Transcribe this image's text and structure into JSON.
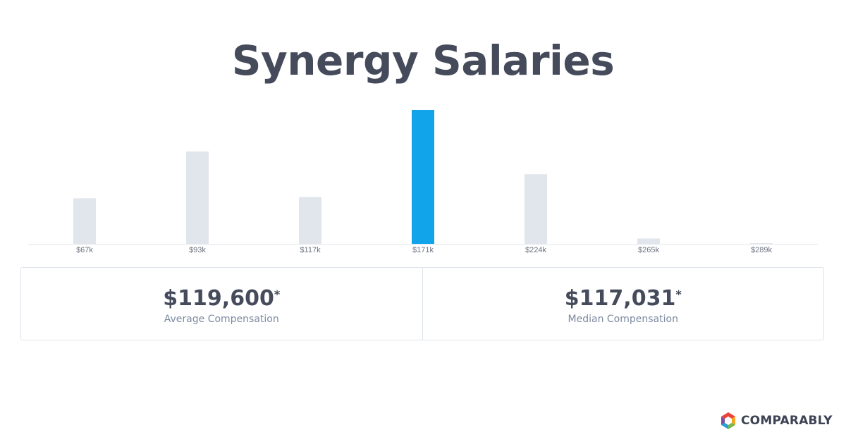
{
  "title": "Synergy Salaries",
  "chart_data": {
    "type": "bar",
    "categories": [
      "$67k",
      "$93k",
      "$117k",
      "$171k",
      "$224k",
      "$265k",
      "$289k"
    ],
    "values": [
      34,
      69,
      35,
      100,
      52,
      4,
      0.5
    ],
    "highlight_index": 3,
    "colors": {
      "bar": "#e0e6ec",
      "highlight": "#12a4ea",
      "axis": "#e3e7ec",
      "tick": "#6b7280"
    },
    "grid": false
  },
  "stats": {
    "average": {
      "value": "$119,600",
      "asterisk": "*",
      "label": "Average Compensation"
    },
    "median": {
      "value": "$117,031",
      "asterisk": "*",
      "label": "Median Compensation"
    }
  },
  "brand": {
    "name": "COMPARABLY",
    "logo_colors": [
      "#e8463b",
      "#f5a623",
      "#7ab648",
      "#2a9fd6",
      "#7b4fa3"
    ]
  }
}
